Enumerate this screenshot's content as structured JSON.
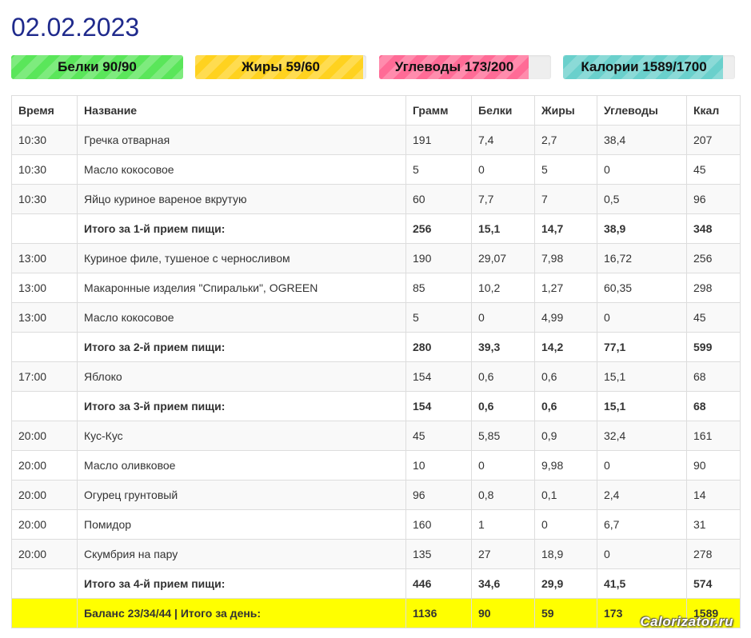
{
  "page": {
    "date": "02.02.2023"
  },
  "progress_bars": [
    {
      "label": "Белки 90/90",
      "percent": 100,
      "color": "#5ae65a"
    },
    {
      "label": "Жиры 59/60",
      "percent": 98,
      "color": "#ffd21f"
    },
    {
      "label": "Углеводы 173/200",
      "percent": 87,
      "color": "#ff6b96"
    },
    {
      "label": "Калории 1589/1700",
      "percent": 93,
      "color": "#6ad0cc"
    }
  ],
  "table": {
    "headers": [
      "Время",
      "Название",
      "Грамм",
      "Белки",
      "Жиры",
      "Углеводы",
      "Ккал"
    ],
    "rows": [
      {
        "type": "item",
        "cells": [
          "10:30",
          "Гречка отварная",
          "191",
          "7,4",
          "2,7",
          "38,4",
          "207"
        ]
      },
      {
        "type": "item",
        "cells": [
          "10:30",
          "Масло кокосовое",
          "5",
          "0",
          "5",
          "0",
          "45"
        ]
      },
      {
        "type": "item",
        "cells": [
          "10:30",
          "Яйцо куриное вареное вкрутую",
          "60",
          "7,7",
          "7",
          "0,5",
          "96"
        ]
      },
      {
        "type": "subtotal",
        "cells": [
          "",
          "Итого за 1-й прием пищи:",
          "256",
          "15,1",
          "14,7",
          "38,9",
          "348"
        ]
      },
      {
        "type": "item",
        "cells": [
          "13:00",
          "Куриное филе, тушеное с черносливом",
          "190",
          "29,07",
          "7,98",
          "16,72",
          "256"
        ]
      },
      {
        "type": "item",
        "cells": [
          "13:00",
          "Макаронные изделия \"Спиральки\", OGREEN",
          "85",
          "10,2",
          "1,27",
          "60,35",
          "298"
        ]
      },
      {
        "type": "item",
        "cells": [
          "13:00",
          "Масло кокосовое",
          "5",
          "0",
          "4,99",
          "0",
          "45"
        ]
      },
      {
        "type": "subtotal",
        "cells": [
          "",
          "Итого за 2-й прием пищи:",
          "280",
          "39,3",
          "14,2",
          "77,1",
          "599"
        ]
      },
      {
        "type": "item",
        "cells": [
          "17:00",
          "Яблоко",
          "154",
          "0,6",
          "0,6",
          "15,1",
          "68"
        ]
      },
      {
        "type": "subtotal",
        "cells": [
          "",
          "Итого за 3-й прием пищи:",
          "154",
          "0,6",
          "0,6",
          "15,1",
          "68"
        ]
      },
      {
        "type": "item",
        "cells": [
          "20:00",
          "Кус-Кус",
          "45",
          "5,85",
          "0,9",
          "32,4",
          "161"
        ]
      },
      {
        "type": "item",
        "cells": [
          "20:00",
          "Масло оливковое",
          "10",
          "0",
          "9,98",
          "0",
          "90"
        ]
      },
      {
        "type": "item",
        "cells": [
          "20:00",
          "Огурец грунтовый",
          "96",
          "0,8",
          "0,1",
          "2,4",
          "14"
        ]
      },
      {
        "type": "item",
        "cells": [
          "20:00",
          "Помидор",
          "160",
          "1",
          "0",
          "6,7",
          "31"
        ]
      },
      {
        "type": "item",
        "cells": [
          "20:00",
          "Скумбрия на пару",
          "135",
          "27",
          "18,9",
          "0",
          "278"
        ]
      },
      {
        "type": "subtotal",
        "cells": [
          "",
          "Итого за 4-й прием пищи:",
          "446",
          "34,6",
          "29,9",
          "41,5",
          "574"
        ]
      },
      {
        "type": "grand",
        "cells": [
          "",
          "Баланс 23/34/44 | Итого за день:",
          "1136",
          "90",
          "59",
          "173",
          "1589"
        ]
      }
    ]
  },
  "watermark": "Calorizator.ru"
}
